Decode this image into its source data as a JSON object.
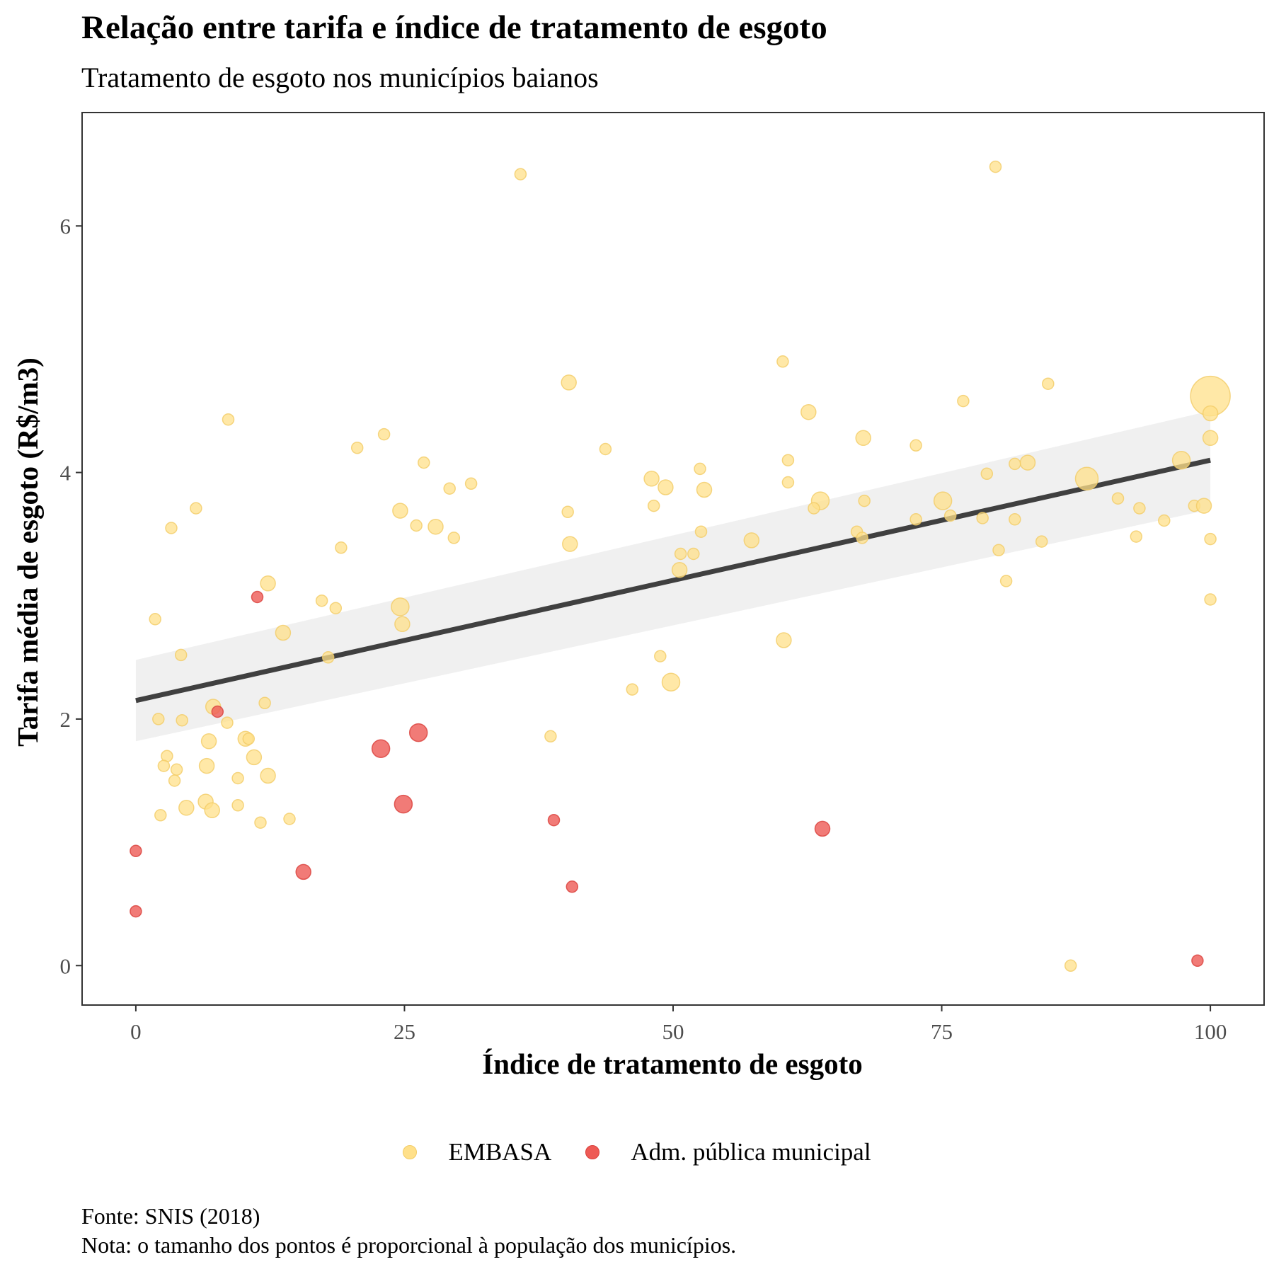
{
  "title": "Relação entre tarifa e índice de tratamento de esgoto",
  "subtitle": "Tratamento de esgoto nos municípios baianos",
  "caption": {
    "source": "Fonte: SNIS (2018)",
    "note": "Nota: o tamanho dos pontos é proporcional à população dos municípios."
  },
  "chart_data": {
    "type": "scatter",
    "xlabel": "Índice de tratamento de esgoto",
    "ylabel": "Tarifa média de esgoto (R$/m3)",
    "xlim": [
      -5,
      105
    ],
    "ylim": [
      -0.32,
      6.92
    ],
    "x_ticks": [
      0,
      25,
      50,
      75,
      100
    ],
    "y_ticks": [
      0,
      2,
      4,
      6
    ],
    "grid": false,
    "legend_position": "bottom",
    "colors": {
      "EMBASA": "#FFE08A",
      "Adm. pública municipal": "#EE5A55",
      "trend": "#404040",
      "band": "#EBEBEB"
    },
    "trend": {
      "x": [
        0,
        100
      ],
      "y": [
        2.15,
        4.1
      ],
      "ci_lower": [
        1.82,
        3.7
      ],
      "ci_upper": [
        2.48,
        4.5
      ]
    },
    "series": [
      {
        "name": "EMBASA",
        "points": [
          [
            35.8,
            6.42,
            1
          ],
          [
            80,
            6.48,
            1
          ],
          [
            60.2,
            4.9,
            1
          ],
          [
            40.3,
            4.73,
            2
          ],
          [
            84.9,
            4.72,
            1
          ],
          [
            100,
            4.62,
            5
          ],
          [
            77,
            4.58,
            1
          ],
          [
            62.6,
            4.49,
            2
          ],
          [
            8.6,
            4.43,
            1
          ],
          [
            100,
            4.48,
            2
          ],
          [
            23.1,
            4.31,
            1
          ],
          [
            67.7,
            4.28,
            2
          ],
          [
            100,
            4.28,
            2
          ],
          [
            20.6,
            4.2,
            1
          ],
          [
            72.6,
            4.22,
            1
          ],
          [
            43.7,
            4.19,
            1
          ],
          [
            60.7,
            4.1,
            1
          ],
          [
            26.8,
            4.08,
            1
          ],
          [
            81.8,
            4.07,
            1
          ],
          [
            83,
            4.08,
            2
          ],
          [
            97.3,
            4.1,
            3
          ],
          [
            52.5,
            4.03,
            1
          ],
          [
            79.2,
            3.99,
            1
          ],
          [
            88.5,
            3.95,
            4
          ],
          [
            48,
            3.95,
            2
          ],
          [
            60.7,
            3.92,
            1
          ],
          [
            31.2,
            3.91,
            1
          ],
          [
            29.2,
            3.87,
            1
          ],
          [
            49.3,
            3.88,
            2
          ],
          [
            52.9,
            3.86,
            2
          ],
          [
            63.7,
            3.77,
            3
          ],
          [
            67.8,
            3.77,
            1
          ],
          [
            75.1,
            3.77,
            3
          ],
          [
            91.4,
            3.79,
            1
          ],
          [
            5.6,
            3.71,
            1
          ],
          [
            24.6,
            3.69,
            2
          ],
          [
            48.2,
            3.73,
            1
          ],
          [
            63.1,
            3.71,
            1
          ],
          [
            93.4,
            3.71,
            1
          ],
          [
            98.5,
            3.73,
            1
          ],
          [
            99.4,
            3.73,
            2
          ],
          [
            40.2,
            3.68,
            1
          ],
          [
            75.8,
            3.65,
            1
          ],
          [
            72.6,
            3.62,
            1
          ],
          [
            78.8,
            3.63,
            1
          ],
          [
            81.8,
            3.62,
            1
          ],
          [
            95.7,
            3.61,
            1
          ],
          [
            3.3,
            3.55,
            1
          ],
          [
            26.1,
            3.57,
            1
          ],
          [
            27.9,
            3.56,
            2
          ],
          [
            52.6,
            3.52,
            1
          ],
          [
            67.1,
            3.52,
            1
          ],
          [
            29.6,
            3.47,
            1
          ],
          [
            67.6,
            3.47,
            1
          ],
          [
            93.1,
            3.48,
            1
          ],
          [
            100,
            3.46,
            1
          ],
          [
            57.3,
            3.45,
            2
          ],
          [
            84.3,
            3.44,
            1
          ],
          [
            40.4,
            3.42,
            2
          ],
          [
            19.1,
            3.39,
            1
          ],
          [
            80.3,
            3.37,
            1
          ],
          [
            50.7,
            3.34,
            1
          ],
          [
            51.9,
            3.34,
            1
          ],
          [
            50.6,
            3.21,
            2
          ],
          [
            81,
            3.12,
            1
          ],
          [
            12.3,
            3.1,
            2
          ],
          [
            17.3,
            2.96,
            1
          ],
          [
            100,
            2.97,
            1
          ],
          [
            18.6,
            2.9,
            1
          ],
          [
            24.6,
            2.91,
            3
          ],
          [
            1.8,
            2.81,
            1
          ],
          [
            24.8,
            2.77,
            2
          ],
          [
            13.7,
            2.7,
            2
          ],
          [
            60.3,
            2.64,
            2
          ],
          [
            4.2,
            2.52,
            1
          ],
          [
            48.8,
            2.51,
            1
          ],
          [
            17.9,
            2.5,
            1
          ],
          [
            49.8,
            2.3,
            3
          ],
          [
            46.2,
            2.24,
            1
          ],
          [
            7.2,
            2.1,
            2
          ],
          [
            12,
            2.13,
            1
          ],
          [
            2.1,
            2,
            1
          ],
          [
            4.3,
            1.99,
            1
          ],
          [
            8.5,
            1.97,
            1
          ],
          [
            38.6,
            1.86,
            1
          ],
          [
            10.2,
            1.84,
            2
          ],
          [
            10.5,
            1.84,
            1
          ],
          [
            6.8,
            1.82,
            2
          ],
          [
            2.9,
            1.7,
            1
          ],
          [
            11,
            1.69,
            2
          ],
          [
            2.6,
            1.62,
            1
          ],
          [
            6.6,
            1.62,
            2
          ],
          [
            3.8,
            1.59,
            1
          ],
          [
            12.3,
            1.54,
            2
          ],
          [
            9.5,
            1.52,
            1
          ],
          [
            3.6,
            1.5,
            1
          ],
          [
            6.5,
            1.33,
            2
          ],
          [
            9.5,
            1.3,
            1
          ],
          [
            4.7,
            1.28,
            2
          ],
          [
            7.1,
            1.26,
            2
          ],
          [
            2.3,
            1.22,
            1
          ],
          [
            14.3,
            1.19,
            1
          ],
          [
            11.6,
            1.16,
            1
          ],
          [
            87,
            0,
            1
          ]
        ]
      },
      {
        "name": "Adm. pública municipal",
        "points": [
          [
            11.3,
            2.99,
            1
          ],
          [
            7.6,
            2.06,
            1
          ],
          [
            26.3,
            1.89,
            3
          ],
          [
            22.8,
            1.76,
            3
          ],
          [
            24.9,
            1.31,
            3
          ],
          [
            38.9,
            1.18,
            1
          ],
          [
            63.9,
            1.11,
            2
          ],
          [
            0,
            0.93,
            1
          ],
          [
            15.6,
            0.76,
            2
          ],
          [
            40.6,
            0.64,
            1
          ],
          [
            0,
            0.44,
            1
          ],
          [
            98.8,
            0.04,
            1
          ]
        ]
      }
    ]
  }
}
